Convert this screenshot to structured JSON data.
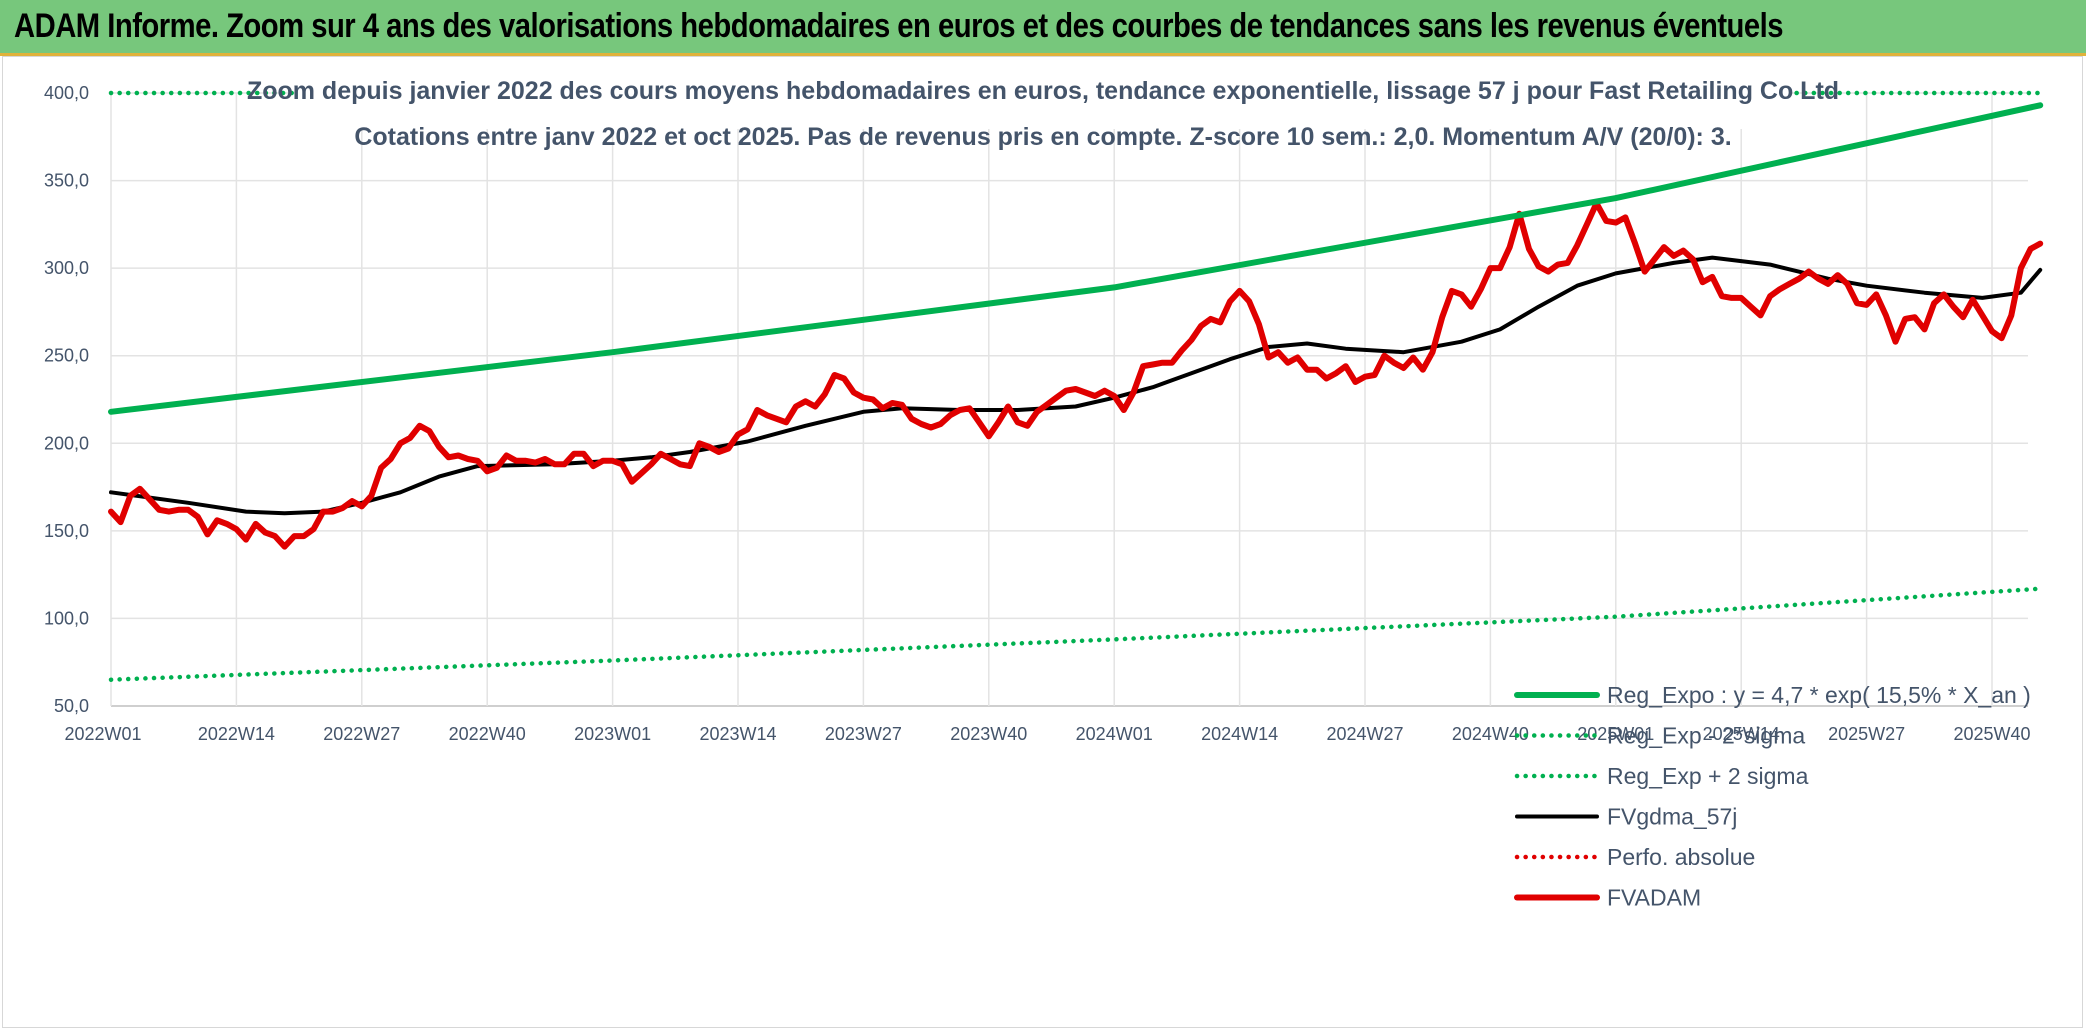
{
  "header": {
    "title": "ADAM Informe. Zoom sur 4 ans des valorisations hebdomadaires en euros et des courbes de tendances sans les revenus éventuels"
  },
  "chart_data": {
    "type": "line",
    "title": "Zoom depuis janvier 2022 des cours moyens hebdomadaires en euros, tendance exponentielle, lissage 57 j pour Fast Retailing Co Ltd",
    "subtitle": "Cotations entre janv 2022 et oct 2025. Pas de revenus pris en compte. Z-score 10 sem.: 2,0. Momentum A/V (20/0): 3.",
    "xlabel": "",
    "ylabel": "",
    "ylim": [
      50,
      400
    ],
    "yticks": [
      "50,0",
      "100,0",
      "150,0",
      "200,0",
      "250,0",
      "300,0",
      "350,0",
      "400,0"
    ],
    "xticks": [
      "2022W01",
      "2022W14",
      "2022W27",
      "2022W40",
      "2023W01",
      "2023W14",
      "2023W27",
      "2023W40",
      "2024W01",
      "2024W14",
      "2024W27",
      "2024W40",
      "2025W01",
      "2025W14",
      "2025W27",
      "2025W40"
    ],
    "x_start_week_index": 0,
    "x_end_week_index": 200,
    "grid": "vertical-and-horizontal",
    "legend_position": "bottom-right",
    "series": [
      {
        "name": "Reg_Expo : y = 4,7 * exp( 15,5% *  X_an )",
        "style": "solid-thick",
        "color": "#00b050",
        "points": [
          [
            0,
            218
          ],
          [
            52,
            252
          ],
          [
            104,
            289
          ],
          [
            156,
            340
          ],
          [
            200,
            393
          ]
        ]
      },
      {
        "name": "Reg_Exp - 2*sigma",
        "style": "dotted",
        "color": "#00b050",
        "points": [
          [
            0,
            65
          ],
          [
            52,
            76
          ],
          [
            104,
            88
          ],
          [
            156,
            101
          ],
          [
            200,
            117
          ]
        ]
      },
      {
        "name": "Reg_Exp + 2 sigma",
        "style": "dotted",
        "color": "#00b050",
        "points": [
          [
            0,
            400
          ],
          [
            200,
            400
          ]
        ]
      },
      {
        "name": "FVgdma_57j",
        "style": "solid",
        "color": "#000000",
        "points": [
          [
            0,
            172
          ],
          [
            8,
            166
          ],
          [
            14,
            161
          ],
          [
            18,
            160
          ],
          [
            22,
            161
          ],
          [
            26,
            166
          ],
          [
            30,
            172
          ],
          [
            34,
            181
          ],
          [
            38,
            187
          ],
          [
            46,
            188
          ],
          [
            52,
            190
          ],
          [
            56,
            192
          ],
          [
            60,
            195
          ],
          [
            66,
            201
          ],
          [
            72,
            210
          ],
          [
            78,
            218
          ],
          [
            82,
            220
          ],
          [
            88,
            219
          ],
          [
            94,
            219
          ],
          [
            100,
            221
          ],
          [
            104,
            226
          ],
          [
            108,
            232
          ],
          [
            112,
            240
          ],
          [
            116,
            248
          ],
          [
            120,
            255
          ],
          [
            124,
            257
          ],
          [
            128,
            254
          ],
          [
            134,
            252
          ],
          [
            140,
            258
          ],
          [
            144,
            265
          ],
          [
            148,
            278
          ],
          [
            152,
            290
          ],
          [
            156,
            297
          ],
          [
            162,
            303
          ],
          [
            166,
            306
          ],
          [
            172,
            302
          ],
          [
            178,
            294
          ],
          [
            182,
            290
          ],
          [
            188,
            286
          ],
          [
            194,
            283
          ],
          [
            198,
            286
          ],
          [
            200,
            299
          ]
        ]
      },
      {
        "name": "Perfo. absolue",
        "style": "dotted",
        "color": "#e00000",
        "points": []
      },
      {
        "name": "FVADAM",
        "style": "solid-thick",
        "color": "#e00000",
        "points": [
          [
            0,
            161
          ],
          [
            1,
            155
          ],
          [
            2,
            170
          ],
          [
            3,
            174
          ],
          [
            4,
            168
          ],
          [
            5,
            162
          ],
          [
            6,
            161
          ],
          [
            7,
            162
          ],
          [
            8,
            162
          ],
          [
            9,
            158
          ],
          [
            10,
            148
          ],
          [
            11,
            156
          ],
          [
            12,
            154
          ],
          [
            13,
            151
          ],
          [
            14,
            145
          ],
          [
            15,
            154
          ],
          [
            16,
            149
          ],
          [
            17,
            147
          ],
          [
            18,
            141
          ],
          [
            19,
            147
          ],
          [
            20,
            147
          ],
          [
            21,
            151
          ],
          [
            22,
            161
          ],
          [
            23,
            161
          ],
          [
            24,
            163
          ],
          [
            25,
            167
          ],
          [
            26,
            164
          ],
          [
            27,
            170
          ],
          [
            28,
            186
          ],
          [
            29,
            191
          ],
          [
            30,
            200
          ],
          [
            31,
            203
          ],
          [
            32,
            210
          ],
          [
            33,
            207
          ],
          [
            34,
            198
          ],
          [
            35,
            192
          ],
          [
            36,
            193
          ],
          [
            37,
            191
          ],
          [
            38,
            190
          ],
          [
            39,
            184
          ],
          [
            40,
            186
          ],
          [
            41,
            193
          ],
          [
            42,
            190
          ],
          [
            43,
            190
          ],
          [
            44,
            189
          ],
          [
            45,
            191
          ],
          [
            46,
            188
          ],
          [
            47,
            188
          ],
          [
            48,
            194
          ],
          [
            49,
            194
          ],
          [
            50,
            187
          ],
          [
            51,
            190
          ],
          [
            52,
            190
          ],
          [
            53,
            188
          ],
          [
            54,
            178
          ],
          [
            55,
            183
          ],
          [
            56,
            188
          ],
          [
            57,
            194
          ],
          [
            58,
            191
          ],
          [
            59,
            188
          ],
          [
            60,
            187
          ],
          [
            61,
            200
          ],
          [
            62,
            198
          ],
          [
            63,
            195
          ],
          [
            64,
            197
          ],
          [
            65,
            205
          ],
          [
            66,
            208
          ],
          [
            67,
            219
          ],
          [
            68,
            216
          ],
          [
            69,
            214
          ],
          [
            70,
            212
          ],
          [
            71,
            221
          ],
          [
            72,
            224
          ],
          [
            73,
            221
          ],
          [
            74,
            228
          ],
          [
            75,
            239
          ],
          [
            76,
            237
          ],
          [
            77,
            229
          ],
          [
            78,
            226
          ],
          [
            79,
            225
          ],
          [
            80,
            220
          ],
          [
            81,
            223
          ],
          [
            82,
            222
          ],
          [
            83,
            214
          ],
          [
            84,
            211
          ],
          [
            85,
            209
          ],
          [
            86,
            211
          ],
          [
            87,
            216
          ],
          [
            88,
            219
          ],
          [
            89,
            220
          ],
          [
            90,
            212
          ],
          [
            91,
            204
          ],
          [
            92,
            212
          ],
          [
            93,
            221
          ],
          [
            94,
            212
          ],
          [
            95,
            210
          ],
          [
            96,
            218
          ],
          [
            97,
            222
          ],
          [
            98,
            226
          ],
          [
            99,
            230
          ],
          [
            100,
            231
          ],
          [
            101,
            229
          ],
          [
            102,
            227
          ],
          [
            103,
            230
          ],
          [
            104,
            227
          ],
          [
            105,
            219
          ],
          [
            106,
            229
          ],
          [
            107,
            244
          ],
          [
            108,
            245
          ],
          [
            109,
            246
          ],
          [
            110,
            246
          ],
          [
            111,
            253
          ],
          [
            112,
            259
          ],
          [
            113,
            267
          ],
          [
            114,
            271
          ],
          [
            115,
            269
          ],
          [
            116,
            281
          ],
          [
            117,
            287
          ],
          [
            118,
            281
          ],
          [
            119,
            268
          ],
          [
            120,
            249
          ],
          [
            121,
            252
          ],
          [
            122,
            246
          ],
          [
            123,
            249
          ],
          [
            124,
            242
          ],
          [
            125,
            242
          ],
          [
            126,
            237
          ],
          [
            127,
            240
          ],
          [
            128,
            244
          ],
          [
            129,
            235
          ],
          [
            130,
            238
          ],
          [
            131,
            239
          ],
          [
            132,
            250
          ],
          [
            133,
            246
          ],
          [
            134,
            243
          ],
          [
            135,
            249
          ],
          [
            136,
            242
          ],
          [
            137,
            252
          ],
          [
            138,
            272
          ],
          [
            139,
            287
          ],
          [
            140,
            285
          ],
          [
            141,
            278
          ],
          [
            142,
            288
          ],
          [
            143,
            300
          ],
          [
            144,
            300
          ],
          [
            145,
            312
          ],
          [
            146,
            331
          ],
          [
            147,
            311
          ],
          [
            148,
            301
          ],
          [
            149,
            298
          ],
          [
            150,
            302
          ],
          [
            151,
            303
          ],
          [
            152,
            313
          ],
          [
            153,
            325
          ],
          [
            154,
            337
          ],
          [
            155,
            327
          ],
          [
            156,
            326
          ],
          [
            157,
            329
          ],
          [
            158,
            314
          ],
          [
            159,
            298
          ],
          [
            160,
            305
          ],
          [
            161,
            312
          ],
          [
            162,
            307
          ],
          [
            163,
            310
          ],
          [
            164,
            305
          ],
          [
            165,
            292
          ],
          [
            166,
            295
          ],
          [
            167,
            284
          ],
          [
            168,
            283
          ],
          [
            169,
            283
          ],
          [
            170,
            278
          ],
          [
            171,
            273
          ],
          [
            172,
            284
          ],
          [
            173,
            288
          ],
          [
            174,
            291
          ],
          [
            175,
            294
          ],
          [
            176,
            298
          ],
          [
            177,
            294
          ],
          [
            178,
            291
          ],
          [
            179,
            296
          ],
          [
            180,
            291
          ],
          [
            181,
            280
          ],
          [
            182,
            279
          ],
          [
            183,
            285
          ],
          [
            184,
            273
          ],
          [
            185,
            258
          ],
          [
            186,
            271
          ],
          [
            187,
            272
          ],
          [
            188,
            265
          ],
          [
            189,
            280
          ],
          [
            190,
            285
          ],
          [
            191,
            278
          ],
          [
            192,
            272
          ],
          [
            193,
            282
          ],
          [
            194,
            273
          ],
          [
            195,
            264
          ],
          [
            196,
            260
          ],
          [
            197,
            273
          ],
          [
            198,
            300
          ],
          [
            199,
            311
          ],
          [
            200,
            314
          ]
        ]
      }
    ]
  }
}
